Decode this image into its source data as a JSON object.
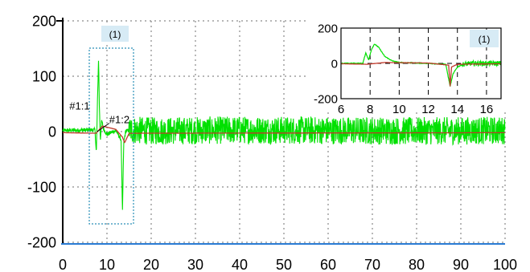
{
  "chart_data": [
    {
      "type": "line",
      "title": "",
      "xlabel": "",
      "ylabel": "",
      "xlim": [
        0,
        100
      ],
      "ylim": [
        -200,
        200
      ],
      "x_ticks": [
        "0",
        "10",
        "20",
        "30",
        "40",
        "50",
        "60",
        "70",
        "80",
        "90",
        "100"
      ],
      "y_ticks": [
        "200",
        "100",
        "0",
        "-100",
        "-200"
      ],
      "grid": true,
      "series": [
        {
          "color": "#00e000",
          "x": [
            0,
            7.3,
            7.6,
            7.9,
            8.1,
            8.3,
            8.5,
            8.8,
            9.2,
            10,
            12,
            13.2,
            13.5,
            13.8,
            14.2,
            15,
            20,
            40,
            60,
            80,
            100
          ],
          "y": [
            2,
            3,
            -40,
            70,
            130,
            40,
            -15,
            20,
            5,
            -5,
            2,
            -15,
            -145,
            -20,
            0,
            3,
            1,
            3,
            2,
            1,
            2
          ],
          "noise_amplitude": 25
        },
        {
          "color": "#c0392b",
          "x": [
            0,
            7.5,
            9,
            12,
            13.5,
            14,
            15,
            100
          ],
          "y": [
            -2,
            -3,
            10,
            4,
            -10,
            -20,
            -3,
            -2
          ]
        }
      ],
      "markers": [
        {
          "label": "#1:1",
          "x": 1.5,
          "y": 40
        },
        {
          "label": "#1:2",
          "x": 10.5,
          "y": 15
        }
      ],
      "region": {
        "label": "(1)",
        "x_range": [
          6,
          16
        ],
        "y_range": [
          -160,
          160
        ]
      }
    },
    {
      "type": "line",
      "title": "",
      "xlim": [
        6,
        17
      ],
      "ylim": [
        -200,
        200
      ],
      "x_ticks": [
        "6",
        "8",
        "10",
        "12",
        "14",
        "16"
      ],
      "y_ticks": [
        "200",
        "0",
        "-200"
      ],
      "grid": true,
      "label": "(1)",
      "series": [
        {
          "color": "#00e000",
          "x": [
            6,
            7.5,
            7.7,
            7.9,
            8.1,
            8.3,
            8.6,
            9.0,
            9.5,
            10,
            11,
            12,
            13.2,
            13.5,
            13.7,
            14,
            14.4,
            15,
            17
          ],
          "y": [
            0,
            0,
            60,
            20,
            80,
            110,
            90,
            40,
            15,
            5,
            3,
            0,
            -5,
            -130,
            -60,
            -20,
            -5,
            0,
            0
          ],
          "noise_amplitude": 14
        },
        {
          "color": "#c0392b",
          "x": [
            6,
            7.8,
            9,
            12,
            13.4,
            13.5,
            13.6,
            14,
            17
          ],
          "y": [
            -2,
            -5,
            5,
            2,
            -10,
            -130,
            -20,
            -5,
            -2
          ]
        }
      ]
    }
  ]
}
